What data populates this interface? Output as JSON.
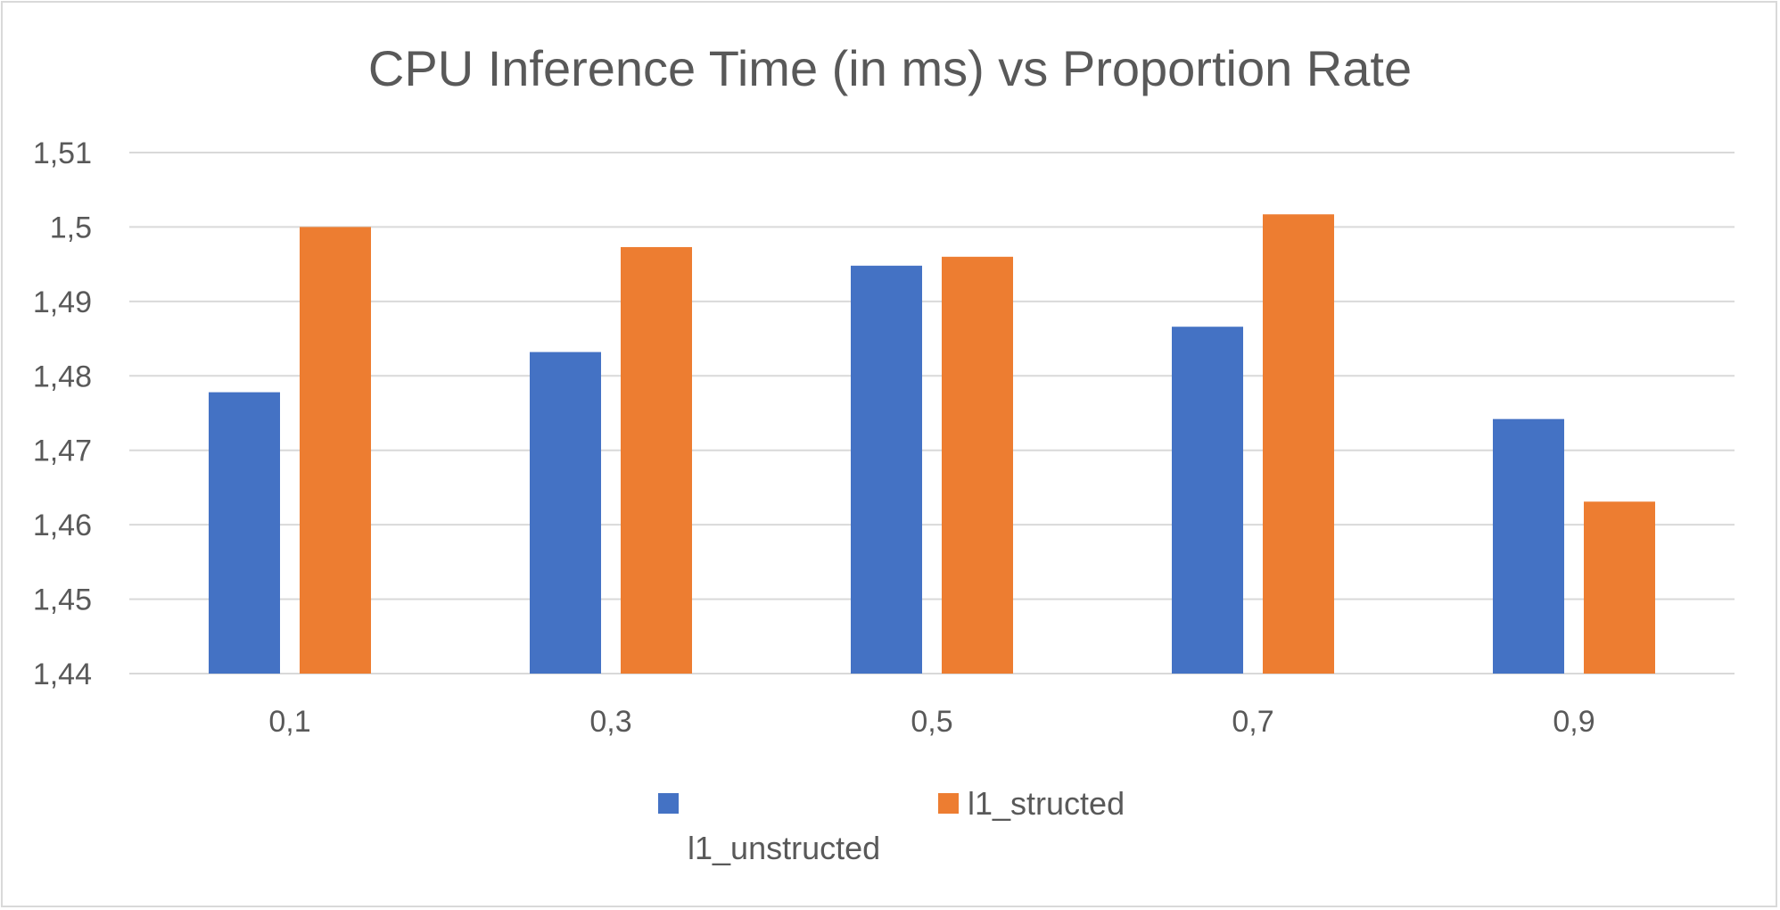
{
  "chart_data": {
    "type": "bar",
    "title": "CPU Inference Time (in ms) vs Proportion Rate",
    "xlabel": "",
    "ylabel": "",
    "categories": [
      "0,1",
      "0,3",
      "0,5",
      "0,7",
      "0,9"
    ],
    "series": [
      {
        "name": "l1_unstructed",
        "color": "#4472c4",
        "values": [
          1.4778,
          1.4832,
          1.4948,
          1.4866,
          1.4742
        ]
      },
      {
        "name": "l1_structed",
        "color": "#ed7d31",
        "values": [
          1.5,
          1.4973,
          1.496,
          1.5017,
          1.4631
        ]
      }
    ],
    "ylim": [
      1.44,
      1.51
    ],
    "yticks": [
      1.44,
      1.45,
      1.46,
      1.47,
      1.48,
      1.49,
      1.5,
      1.51
    ],
    "ytick_labels": [
      "1,44",
      "1,45",
      "1,46",
      "1,47",
      "1,48",
      "1,49",
      "1,5",
      "1,51"
    ],
    "grid": true,
    "legend_position": "bottom",
    "gridline_color": "#d9d9d9",
    "axis_text_color": "#595959"
  }
}
